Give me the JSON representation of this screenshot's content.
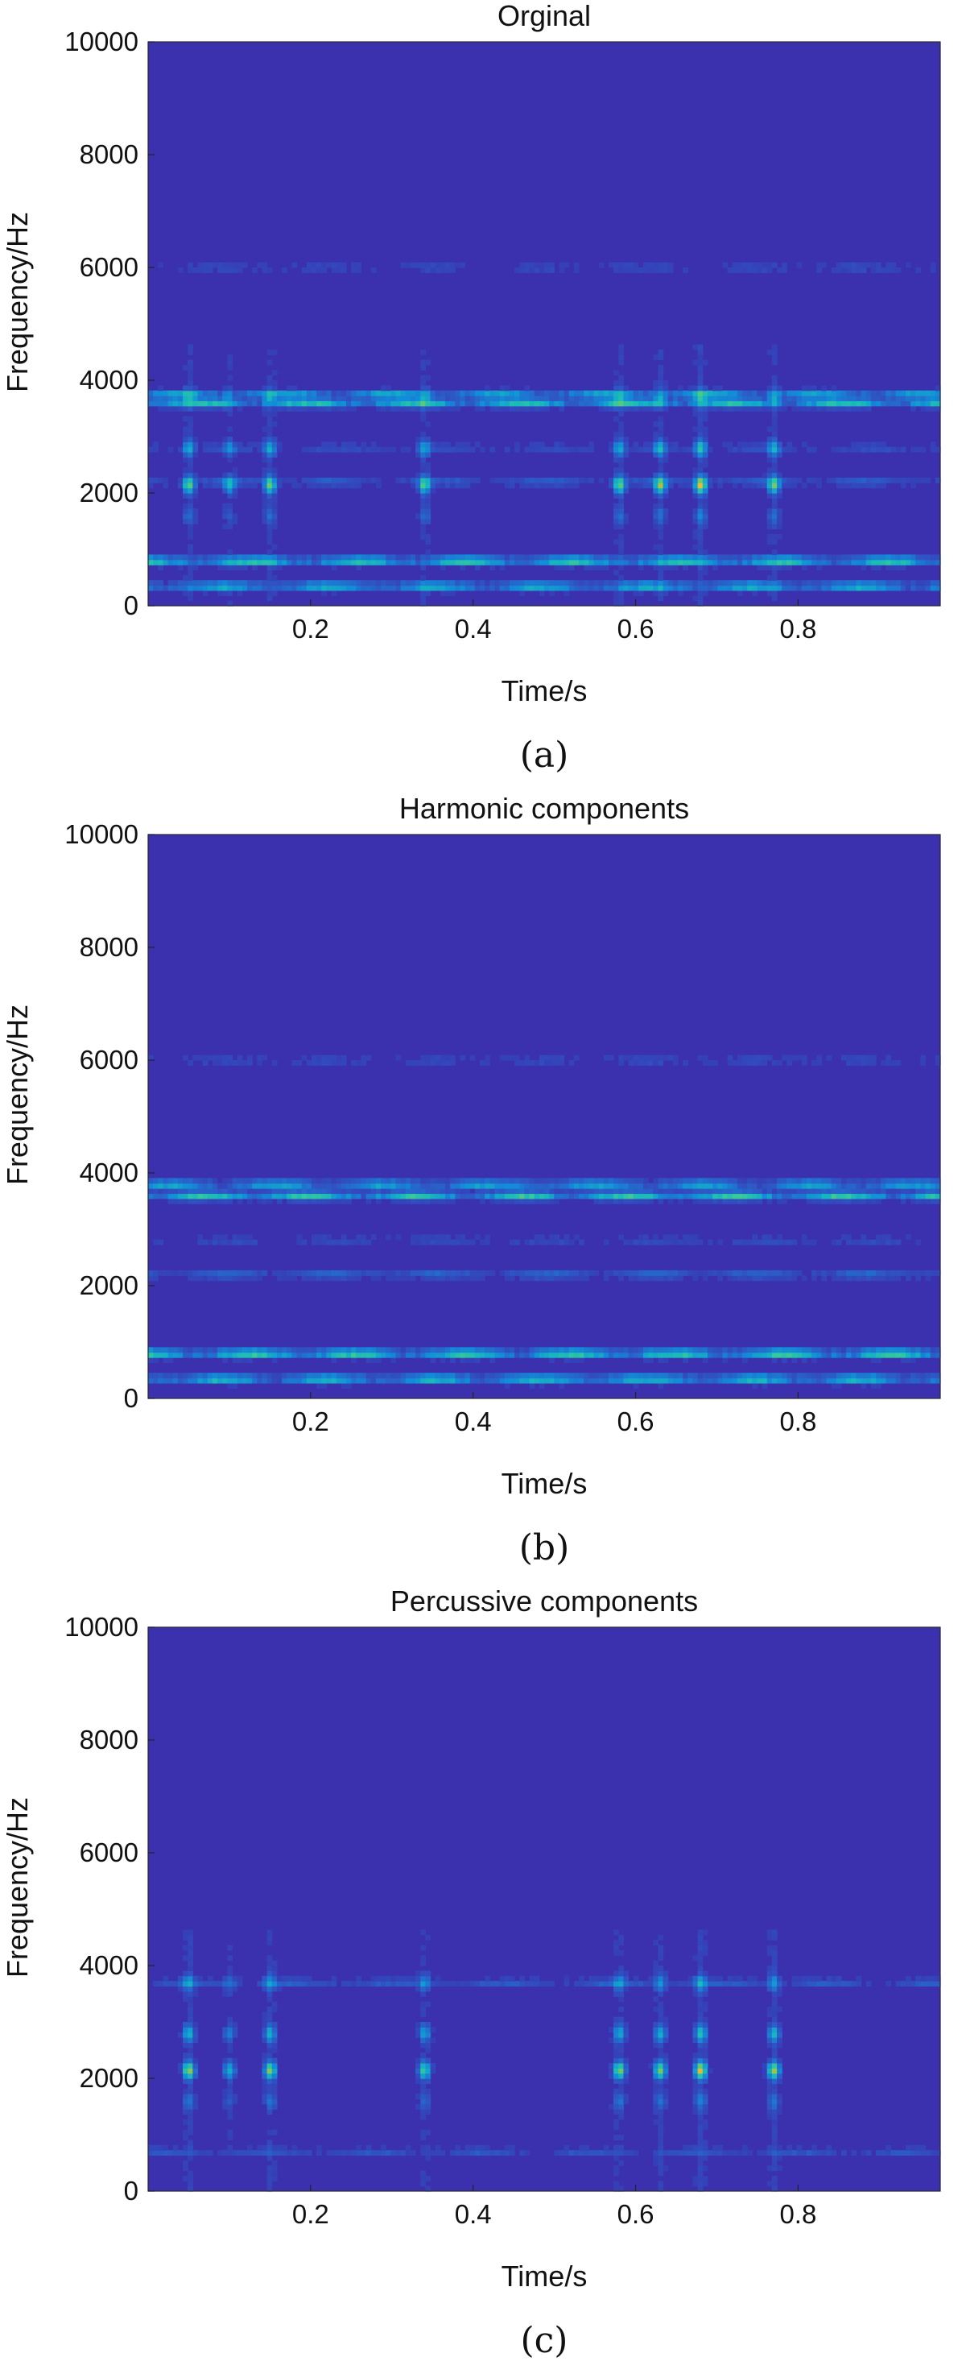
{
  "chart_data": [
    {
      "type": "heatmap",
      "title": "Orginal",
      "xlabel": "Time/s",
      "ylabel": "Frequency/Hz",
      "xlim": [
        0.0,
        0.975
      ],
      "ylim": [
        0,
        10000
      ],
      "xticks": [
        0.2,
        0.4,
        0.6,
        0.8
      ],
      "yticks": [
        0,
        2000,
        4000,
        6000,
        8000,
        10000
      ],
      "caption": "(a)",
      "colormap": [
        "#3e26a8",
        "#2e56c5",
        "#138bd8",
        "#16b6c0",
        "#36c99b",
        "#9fc542",
        "#eaba30",
        "#f9fb0e"
      ],
      "background_value": 0.03,
      "bands": [
        {
          "freq": 350,
          "intensity": 0.4
        },
        {
          "freq": 800,
          "intensity": 0.5
        },
        {
          "freq": 2200,
          "intensity": 0.12
        },
        {
          "freq": 2800,
          "intensity": 0.08
        },
        {
          "freq": 3600,
          "intensity": 0.45
        },
        {
          "freq": 3750,
          "intensity": 0.35
        },
        {
          "freq": 6000,
          "intensity": 0.07
        }
      ],
      "transients": [
        {
          "time": 0.05,
          "intensity": 0.55
        },
        {
          "time": 0.1,
          "intensity": 0.35
        },
        {
          "time": 0.15,
          "intensity": 0.55
        },
        {
          "time": 0.34,
          "intensity": 0.5
        },
        {
          "time": 0.58,
          "intensity": 0.55
        },
        {
          "time": 0.63,
          "intensity": 0.6
        },
        {
          "time": 0.68,
          "intensity": 0.75
        },
        {
          "time": 0.77,
          "intensity": 0.55
        }
      ]
    },
    {
      "type": "heatmap",
      "title": "Harmonic components",
      "xlabel": "Time/s",
      "ylabel": "Frequency/Hz",
      "xlim": [
        0.0,
        0.975
      ],
      "ylim": [
        0,
        10000
      ],
      "xticks": [
        0.2,
        0.4,
        0.6,
        0.8
      ],
      "yticks": [
        0,
        2000,
        4000,
        6000,
        8000,
        10000
      ],
      "caption": "(b)",
      "colormap": [
        "#3e26a8",
        "#2e56c5",
        "#138bd8",
        "#16b6c0",
        "#36c99b",
        "#9fc542",
        "#eaba30",
        "#f9fb0e"
      ],
      "background_value": 0.03,
      "bands": [
        {
          "freq": 350,
          "intensity": 0.45
        },
        {
          "freq": 800,
          "intensity": 0.55
        },
        {
          "freq": 2200,
          "intensity": 0.15
        },
        {
          "freq": 2800,
          "intensity": 0.07
        },
        {
          "freq": 3600,
          "intensity": 0.5
        },
        {
          "freq": 3800,
          "intensity": 0.35
        },
        {
          "freq": 6000,
          "intensity": 0.07
        }
      ],
      "transients": []
    },
    {
      "type": "heatmap",
      "title": "Percussive components",
      "xlabel": "Time/s",
      "ylabel": "Frequency/Hz",
      "xlim": [
        0.0,
        0.975
      ],
      "ylim": [
        0,
        10000
      ],
      "xticks": [
        0.2,
        0.4,
        0.6,
        0.8
      ],
      "yticks": [
        0,
        2000,
        4000,
        6000,
        8000,
        10000
      ],
      "caption": "(c)",
      "colormap": [
        "#3e26a8",
        "#2e56c5",
        "#138bd8",
        "#16b6c0",
        "#36c99b",
        "#9fc542",
        "#eaba30",
        "#f9fb0e"
      ],
      "background_value": 0.03,
      "bands": [
        {
          "freq": 700,
          "intensity": 0.1
        },
        {
          "freq": 3700,
          "intensity": 0.12
        }
      ],
      "transients": [
        {
          "time": 0.05,
          "intensity": 0.65
        },
        {
          "time": 0.1,
          "intensity": 0.35
        },
        {
          "time": 0.15,
          "intensity": 0.6
        },
        {
          "time": 0.34,
          "intensity": 0.5
        },
        {
          "time": 0.58,
          "intensity": 0.6
        },
        {
          "time": 0.63,
          "intensity": 0.6
        },
        {
          "time": 0.68,
          "intensity": 0.75
        },
        {
          "time": 0.77,
          "intensity": 0.65
        }
      ]
    }
  ]
}
